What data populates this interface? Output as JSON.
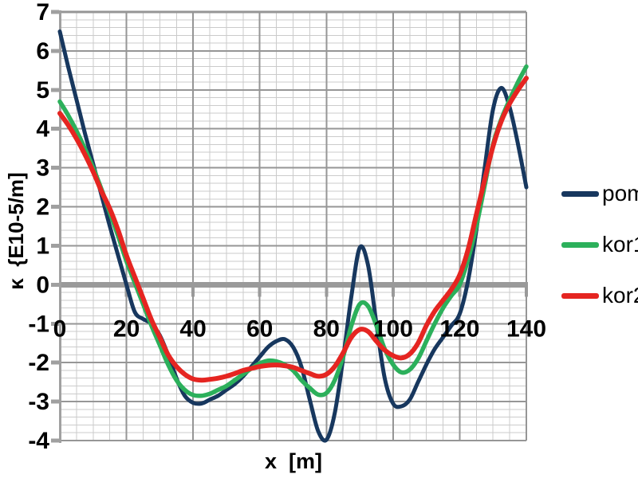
{
  "chart_data": {
    "type": "line",
    "title": "",
    "xlabel": "x  [m]",
    "ylabel": "κ  {E10-5/m]",
    "xlim": [
      0,
      140
    ],
    "ylim": [
      -4,
      7
    ],
    "x_major_step": 20,
    "x_minor_step": 5,
    "y_major_step": 1,
    "y_minor_step": 0.2,
    "x_ticks": [
      "0",
      "20",
      "40",
      "60",
      "80",
      "100",
      "120",
      "140"
    ],
    "y_ticks": [
      "7",
      "6",
      "5",
      "4",
      "3",
      "2",
      "1",
      "0",
      "-1",
      "-2",
      "-3",
      "-4"
    ],
    "grid": "major+minor",
    "legend_position": "right",
    "x": [
      0,
      2.5,
      5,
      7.5,
      10,
      12.5,
      15,
      17.5,
      20,
      22.5,
      25,
      27.5,
      30,
      32.5,
      35,
      37.5,
      40,
      42.5,
      45,
      47.5,
      50,
      52.5,
      55,
      57.5,
      60,
      62.5,
      65,
      67.5,
      70,
      72.5,
      75,
      77.5,
      80,
      82.5,
      85,
      87.5,
      90,
      92.5,
      95,
      97.5,
      100,
      102.5,
      105,
      107.5,
      110,
      112.5,
      115,
      117.5,
      120,
      122.5,
      125,
      127.5,
      130,
      132.5,
      135,
      137.5,
      140
    ],
    "series": [
      {
        "name": "pom",
        "color": "#17375E",
        "width": 5,
        "values": [
          6.5,
          5.6,
          4.75,
          3.9,
          3.1,
          2.3,
          1.5,
          0.75,
          0.0,
          -0.7,
          -0.88,
          -1.0,
          -1.3,
          -1.8,
          -2.4,
          -2.85,
          -3.03,
          -3.05,
          -2.95,
          -2.85,
          -2.7,
          -2.55,
          -2.35,
          -2.1,
          -1.85,
          -1.6,
          -1.45,
          -1.4,
          -1.6,
          -2.1,
          -2.95,
          -3.75,
          -3.98,
          -3.3,
          -1.9,
          -0.3,
          0.95,
          0.5,
          -1.0,
          -2.4,
          -3.05,
          -3.12,
          -2.95,
          -2.5,
          -2.05,
          -1.65,
          -1.35,
          -1.05,
          -0.75,
          0.1,
          1.4,
          3.0,
          4.5,
          5.05,
          4.55,
          3.6,
          2.5
        ]
      },
      {
        "name": "kor1",
        "color": "#2CB05B",
        "width": 5.5,
        "values": [
          4.7,
          4.35,
          3.95,
          3.5,
          3.0,
          2.45,
          1.85,
          1.25,
          0.6,
          0.05,
          -0.5,
          -1.05,
          -1.55,
          -2.05,
          -2.45,
          -2.7,
          -2.83,
          -2.85,
          -2.8,
          -2.7,
          -2.6,
          -2.45,
          -2.3,
          -2.15,
          -2.02,
          -1.95,
          -1.97,
          -2.05,
          -2.2,
          -2.45,
          -2.65,
          -2.82,
          -2.78,
          -2.45,
          -1.85,
          -1.05,
          -0.5,
          -0.55,
          -1.05,
          -1.65,
          -2.05,
          -2.25,
          -2.18,
          -1.9,
          -1.45,
          -1.0,
          -0.6,
          -0.28,
          0.0,
          0.65,
          1.5,
          2.55,
          3.6,
          4.25,
          4.75,
          5.2,
          5.6
        ]
      },
      {
        "name": "kor2",
        "color": "#E52521",
        "width": 6,
        "values": [
          4.4,
          4.1,
          3.75,
          3.35,
          2.9,
          2.4,
          1.95,
          1.4,
          0.75,
          0.2,
          -0.35,
          -0.9,
          -1.35,
          -1.8,
          -2.1,
          -2.3,
          -2.42,
          -2.45,
          -2.43,
          -2.4,
          -2.35,
          -2.28,
          -2.2,
          -2.15,
          -2.1,
          -2.07,
          -2.06,
          -2.08,
          -2.12,
          -2.2,
          -2.28,
          -2.35,
          -2.3,
          -2.1,
          -1.75,
          -1.35,
          -1.15,
          -1.2,
          -1.45,
          -1.68,
          -1.82,
          -1.88,
          -1.78,
          -1.5,
          -1.05,
          -0.68,
          -0.4,
          -0.12,
          0.25,
          0.9,
          1.8,
          2.7,
          3.55,
          4.2,
          4.65,
          5.0,
          5.3
        ]
      }
    ]
  },
  "colors": {
    "background": "#FFFFFF",
    "minor_grid": "#CBCBCB",
    "major_grid": "#969696",
    "zero_line": "#9A9A9A",
    "axis": "#A0A0A0",
    "text": "#000000"
  }
}
